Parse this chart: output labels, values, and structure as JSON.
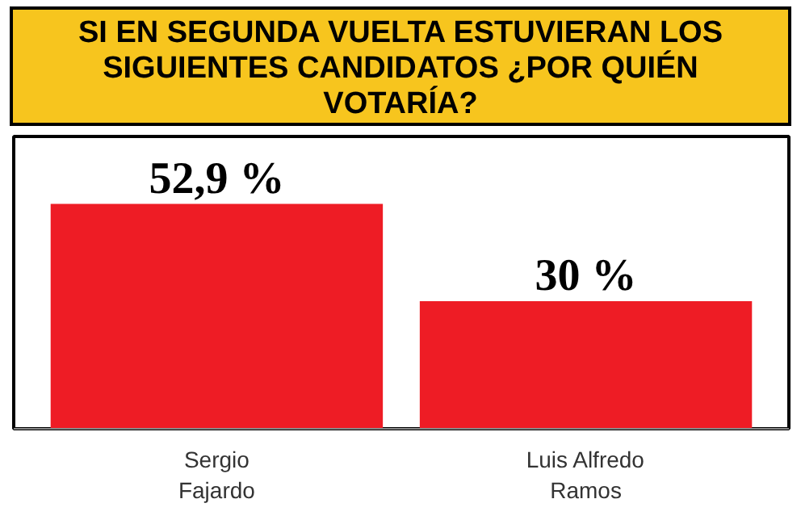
{
  "chart_data": {
    "type": "bar",
    "title": "SI EN SEGUNDA VUELTA ESTUVIERAN LOS SIGUIENTES CANDIDATOS ¿POR QUIÉN VOTARÍA?",
    "categories": [
      "Sergio Fajardo",
      "Luis Alfredo Ramos"
    ],
    "values": [
      52.9,
      30
    ],
    "value_labels": [
      "52,9 %",
      "30 %"
    ],
    "color": "#ee1c25",
    "grid": false
  }
}
